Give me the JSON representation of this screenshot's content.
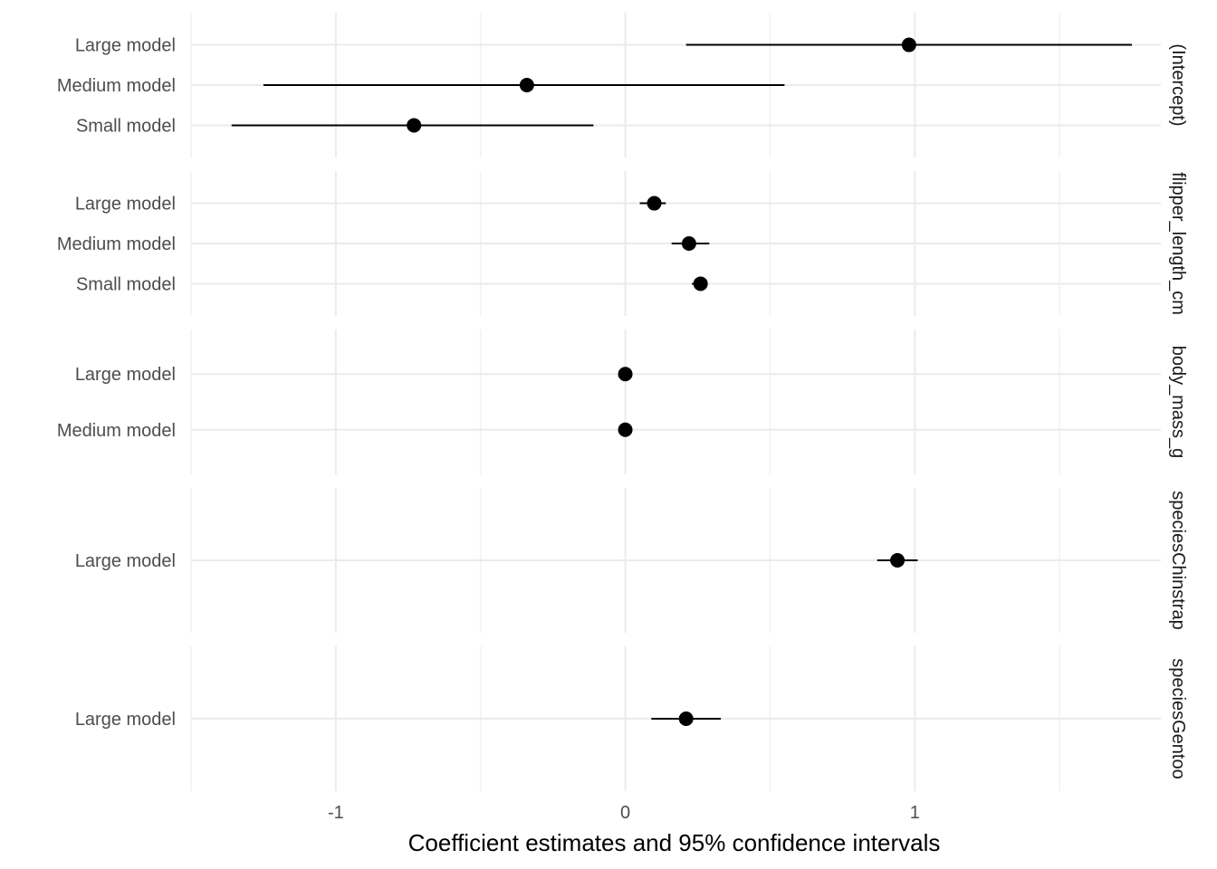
{
  "chart_data": {
    "type": "scatter",
    "subtype": "coefficient-plot-with-confidence-intervals",
    "title": "",
    "xlabel": "Coefficient estimates and 95% confidence intervals",
    "ylabel": "",
    "xlim": [
      -1.5,
      1.85
    ],
    "x_ticks": [
      -1,
      0,
      1
    ],
    "x_tick_labels": [
      "-1",
      "0",
      "1"
    ],
    "grid": true,
    "facets": [
      {
        "label": "(Intercept)",
        "rows": [
          {
            "model": "Large model",
            "estimate": 0.98,
            "low": 0.21,
            "high": 1.75
          },
          {
            "model": "Medium model",
            "estimate": -0.34,
            "low": -1.25,
            "high": 0.55
          },
          {
            "model": "Small model",
            "estimate": -0.73,
            "low": -1.36,
            "high": -0.11
          }
        ]
      },
      {
        "label": "flipper_length_cm",
        "rows": [
          {
            "model": "Large model",
            "estimate": 0.1,
            "low": 0.05,
            "high": 0.14
          },
          {
            "model": "Medium model",
            "estimate": 0.22,
            "low": 0.16,
            "high": 0.29
          },
          {
            "model": "Small model",
            "estimate": 0.26,
            "low": 0.23,
            "high": 0.28
          }
        ]
      },
      {
        "label": "body_mass_g",
        "rows": [
          {
            "model": "Large model",
            "estimate": 0.0,
            "low": 0.0,
            "high": 0.0
          },
          {
            "model": "Medium model",
            "estimate": 0.0,
            "low": 0.0,
            "high": 0.0
          }
        ]
      },
      {
        "label": "speciesChinstrap",
        "rows": [
          {
            "model": "Large model",
            "estimate": 0.94,
            "low": 0.87,
            "high": 1.01
          }
        ]
      },
      {
        "label": "speciesGentoo",
        "rows": [
          {
            "model": "Large model",
            "estimate": 0.21,
            "low": 0.09,
            "high": 0.33
          }
        ]
      }
    ]
  }
}
